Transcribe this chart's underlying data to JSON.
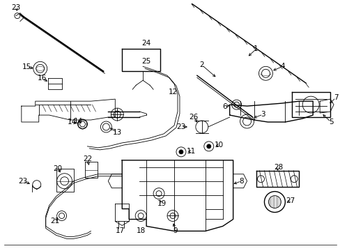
{
  "bg_color": "#ffffff",
  "line_color": "#000000",
  "fig_width": 4.89,
  "fig_height": 3.6,
  "dpi": 100,
  "fs": 7.5,
  "lw_thin": 0.6,
  "lw_med": 1.0,
  "lw_thick": 1.5
}
